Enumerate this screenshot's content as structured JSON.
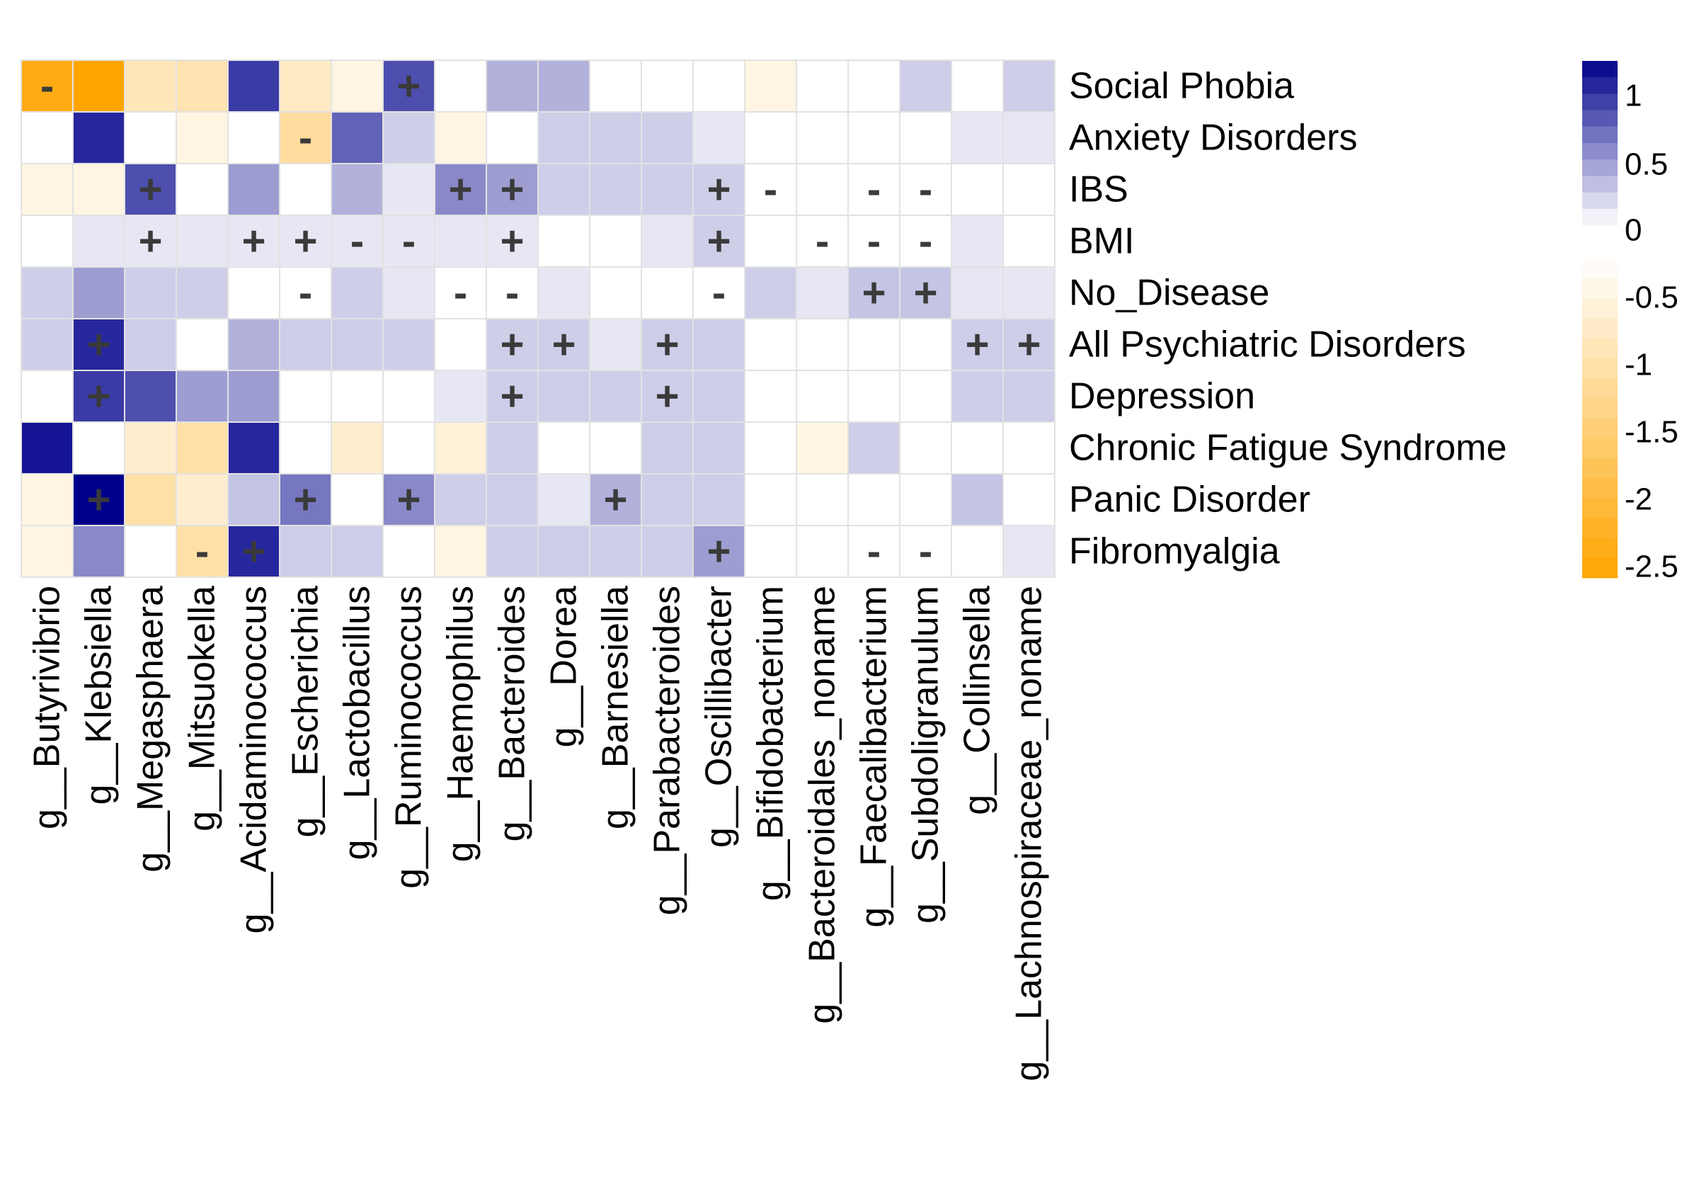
{
  "chart_data": {
    "type": "heatmap",
    "rows": [
      "Social Phobia",
      "Anxiety Disorders",
      "IBS",
      "BMI",
      "No_Disease",
      "All Psychiatric Disorders",
      "Depression",
      "Chronic Fatigue Syndrome",
      "Panic Disorder",
      "Fibromyalgia"
    ],
    "columns": [
      "g__Butyrivibrio",
      "g__Klebsiella",
      "g__Megasphaera",
      "g__Mitsuokella",
      "g__Acidaminococcus",
      "g__Escherichia",
      "g__Lactobacillus",
      "g__Ruminococcus",
      "g__Haemophilus",
      "g__Bacteroides",
      "g__Dorea",
      "g__Barnesiella",
      "g__Parabacteroides",
      "g__Oscillibacter",
      "g__Bifidobacterium",
      "g__Bacteroidales_noname",
      "g__Faecalibacterium",
      "g__Subdoligranulum",
      "g__Collinsella",
      "g__Lachnospiraceae_noname"
    ],
    "values": [
      [
        -2.4,
        -2.6,
        -0.7,
        -0.8,
        1.0,
        -0.6,
        -0.3,
        0.9,
        0.0,
        0.4,
        0.4,
        0.0,
        0.0,
        0.0,
        -0.3,
        0.0,
        0.0,
        0.25,
        0.0,
        0.25
      ],
      [
        0.0,
        1.1,
        0.0,
        -0.3,
        0.0,
        -1.0,
        0.8,
        0.25,
        -0.3,
        0.0,
        0.25,
        0.25,
        0.25,
        0.12,
        0.0,
        0.0,
        0.0,
        0.0,
        0.12,
        0.12
      ],
      [
        -0.3,
        -0.3,
        0.9,
        0.0,
        0.5,
        0.0,
        0.4,
        0.12,
        0.6,
        0.5,
        0.25,
        0.25,
        0.25,
        0.25,
        0.0,
        0.0,
        0.0,
        0.0,
        0.0,
        0.0
      ],
      [
        0.0,
        0.12,
        0.12,
        0.12,
        0.12,
        0.12,
        0.12,
        0.12,
        0.12,
        0.12,
        0.0,
        0.0,
        0.12,
        0.25,
        0.0,
        0.0,
        0.0,
        0.0,
        0.12,
        0.0
      ],
      [
        0.25,
        0.5,
        0.25,
        0.25,
        0.0,
        0.0,
        0.25,
        0.12,
        0.0,
        0.0,
        0.12,
        0.0,
        0.0,
        0.0,
        0.25,
        0.12,
        0.3,
        0.3,
        0.12,
        0.12
      ],
      [
        0.25,
        1.1,
        0.25,
        0.0,
        0.4,
        0.25,
        0.25,
        0.25,
        0.0,
        0.25,
        0.25,
        0.12,
        0.25,
        0.25,
        0.0,
        0.0,
        0.0,
        0.0,
        0.25,
        0.25
      ],
      [
        0.0,
        1.0,
        0.9,
        0.5,
        0.5,
        0.0,
        0.0,
        0.0,
        0.12,
        0.25,
        0.25,
        0.25,
        0.25,
        0.25,
        0.0,
        0.0,
        0.0,
        0.0,
        0.25,
        0.25
      ],
      [
        1.2,
        0.0,
        -0.5,
        -0.9,
        1.1,
        0.0,
        -0.5,
        0.0,
        -0.4,
        0.25,
        0.0,
        0.0,
        0.25,
        0.25,
        0.0,
        -0.3,
        0.25,
        0.0,
        0.0,
        0.0
      ],
      [
        -0.3,
        1.3,
        -0.9,
        -0.5,
        0.3,
        0.7,
        0.0,
        0.6,
        0.25,
        0.25,
        0.12,
        0.4,
        0.25,
        0.25,
        0.0,
        0.0,
        0.0,
        0.0,
        0.3,
        0.0
      ],
      [
        -0.3,
        0.6,
        0.0,
        -0.9,
        1.1,
        0.25,
        0.25,
        0.0,
        -0.3,
        0.25,
        0.25,
        0.25,
        0.25,
        0.5,
        0.0,
        0.0,
        0.0,
        0.0,
        0.0,
        0.12
      ]
    ],
    "significance": [
      [
        "-",
        "",
        "",
        "",
        "",
        "",
        "",
        "+",
        "",
        "",
        "",
        "",
        "",
        "",
        "",
        "",
        "",
        "",
        "",
        ""
      ],
      [
        "",
        "",
        "",
        "",
        "",
        "-",
        "",
        "",
        "",
        "",
        "",
        "",
        "",
        "",
        "",
        "",
        "",
        "",
        "",
        ""
      ],
      [
        "",
        "",
        "+",
        "",
        "",
        "",
        "",
        "",
        "+",
        "+",
        "",
        "",
        "",
        "+",
        "-",
        "",
        "-",
        "-",
        "",
        ""
      ],
      [
        "",
        "",
        "+",
        "",
        "+",
        "+",
        "-",
        "-",
        "",
        "+",
        "",
        "",
        "",
        "+",
        "",
        "-",
        "-",
        "-",
        "",
        ""
      ],
      [
        "",
        "",
        "",
        "",
        "",
        "-",
        "",
        "",
        "-",
        "-",
        "",
        "",
        "",
        "-",
        "",
        "",
        "+",
        "+",
        "",
        ""
      ],
      [
        "",
        "+",
        "",
        "",
        "",
        "",
        "",
        "",
        "",
        "+",
        "+",
        "",
        "+",
        "",
        "",
        "",
        "",
        "",
        "+",
        "+"
      ],
      [
        "",
        "+",
        "",
        "",
        "",
        "",
        "",
        "",
        "",
        "+",
        "",
        "",
        "+",
        "",
        "",
        "",
        "",
        "",
        "",
        ""
      ],
      [
        "",
        "",
        "",
        "",
        "",
        "",
        "",
        "",
        "",
        "",
        "",
        "",
        "",
        "",
        "",
        "",
        "",
        "",
        "",
        ""
      ],
      [
        "",
        "+",
        "",
        "",
        "",
        "+",
        "",
        "+",
        "",
        "",
        "",
        "+",
        "",
        "",
        "",
        "",
        "",
        "",
        "",
        ""
      ],
      [
        "",
        "",
        "",
        "-",
        "+",
        "",
        "",
        "",
        "",
        "",
        "",
        "",
        "",
        "+",
        "",
        "",
        "-",
        "-",
        "",
        ""
      ]
    ],
    "legend": {
      "position": "right",
      "ticks_positive": [
        "1",
        "0.5",
        "0"
      ],
      "ticks_negative": [
        "-0.5",
        "-1",
        "-1.5",
        "-2",
        "-2.5"
      ],
      "positive_max": 1.3,
      "negative_min": -2.6
    },
    "colors": {
      "positive_high": "#00008b",
      "negative_low": "#ffa500",
      "zero": "#ffffff",
      "grid": "#e2e2e2",
      "marker": "#3a3a3a"
    }
  }
}
